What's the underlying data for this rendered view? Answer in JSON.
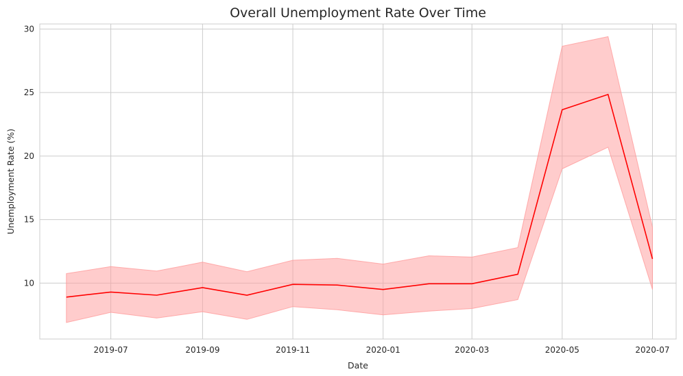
{
  "chart_data": {
    "type": "line",
    "title": "Overall Unemployment Rate Over Time",
    "xlabel": "Date",
    "ylabel": "Unemployment Rate (%)",
    "x": [
      "2019-06-01",
      "2019-07-01",
      "2019-08-01",
      "2019-09-01",
      "2019-10-01",
      "2019-11-01",
      "2019-12-01",
      "2020-01-01",
      "2020-02-01",
      "2020-03-01",
      "2020-04-01",
      "2020-05-01",
      "2020-06-01",
      "2020-07-01"
    ],
    "series": [
      {
        "values": [
          8.9,
          9.3,
          9.05,
          9.65,
          9.05,
          9.9,
          9.85,
          9.5,
          9.95,
          9.95,
          10.7,
          23.65,
          24.85,
          11.9
        ],
        "lower": [
          6.9,
          7.7,
          7.25,
          7.75,
          7.15,
          8.15,
          7.9,
          7.5,
          7.8,
          8.0,
          8.7,
          19.0,
          20.7,
          9.5
        ],
        "upper": [
          10.75,
          11.3,
          10.95,
          11.65,
          10.9,
          11.8,
          11.95,
          11.5,
          12.15,
          12.05,
          12.8,
          28.65,
          29.4,
          14.4
        ],
        "color": "#ff0000",
        "band_color": "#ff9a9a"
      }
    ],
    "xticks": [
      "2019-07",
      "2019-09",
      "2019-11",
      "2020-01",
      "2020-03",
      "2020-05",
      "2020-07"
    ],
    "yticks": [
      10,
      15,
      20,
      25,
      30
    ],
    "xlim": [
      "2019-05-14",
      "2020-07-17"
    ],
    "ylim": [
      5.6,
      30.4
    ],
    "grid": true
  }
}
